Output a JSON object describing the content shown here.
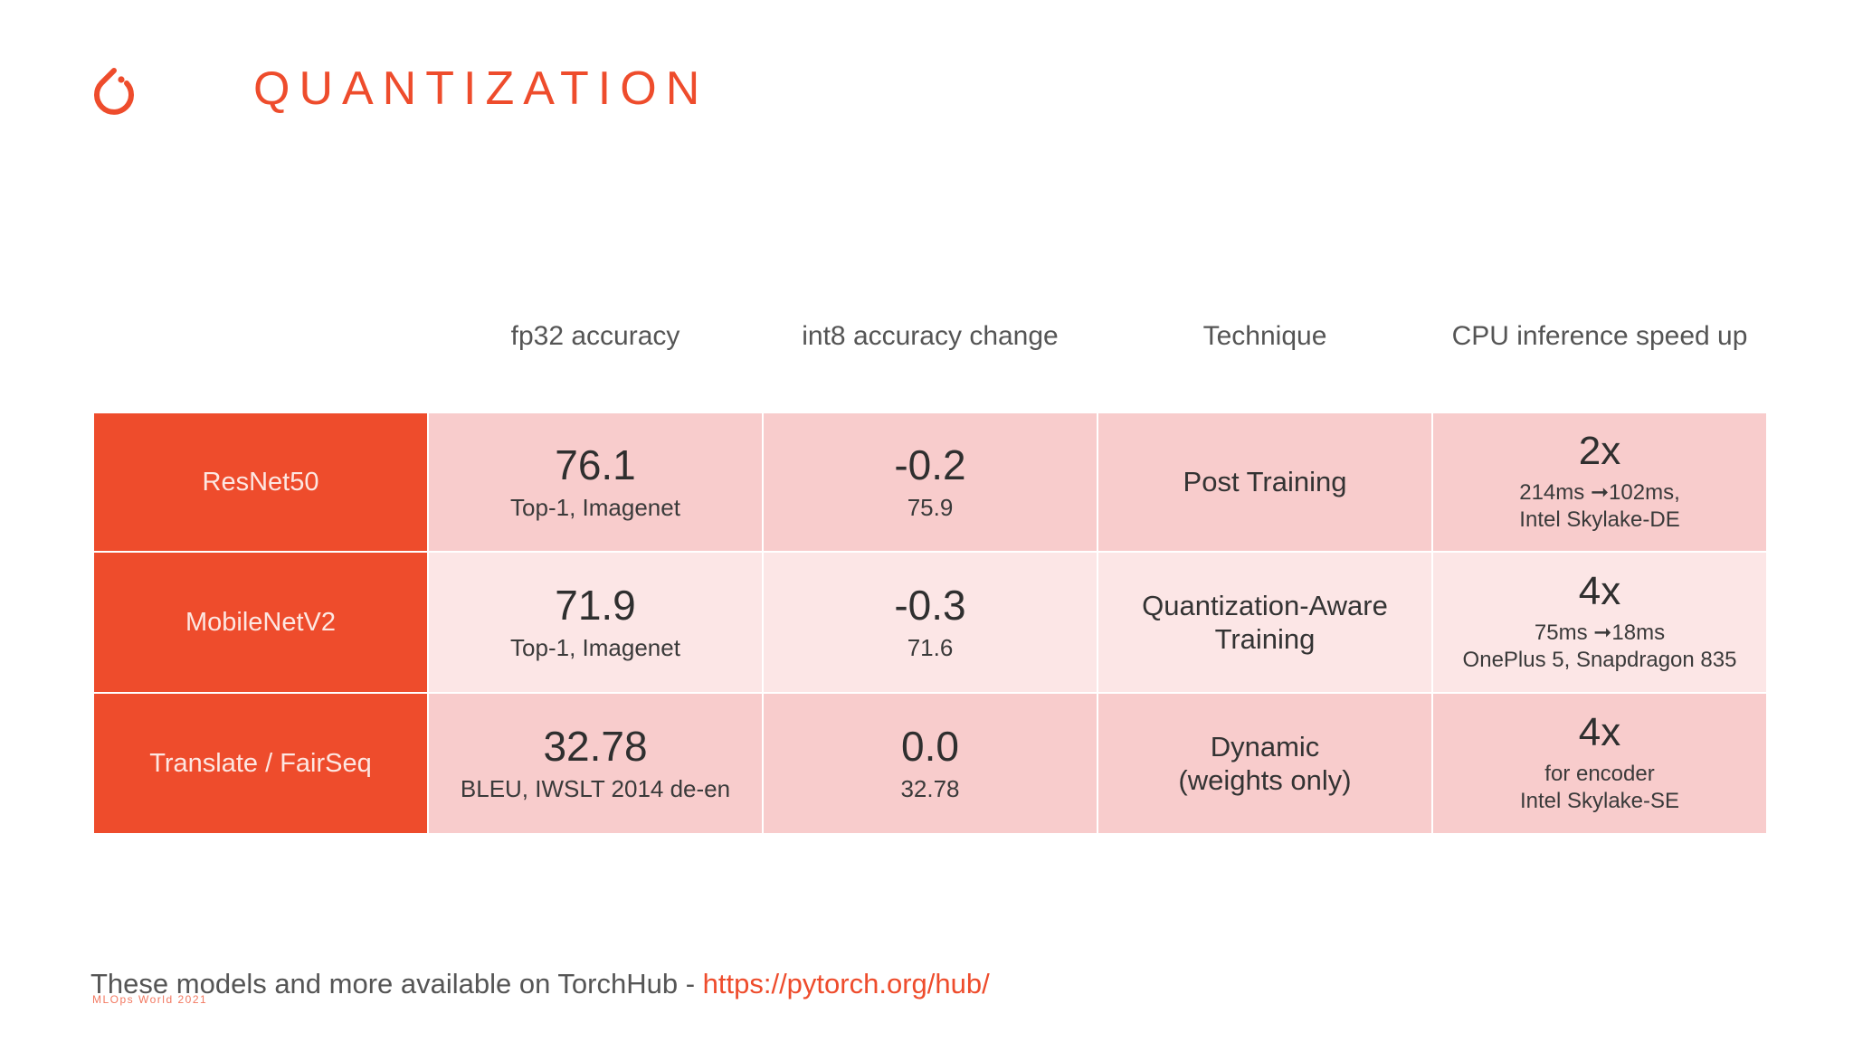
{
  "slide": {
    "title": "QUANTIZATION",
    "logo_icon": "pytorch-flame-icon",
    "accent_color": "#ee4c2c"
  },
  "table": {
    "headers": [
      "fp32 accuracy",
      "int8 accuracy change",
      "Technique",
      "CPU inference speed up"
    ],
    "rows": [
      {
        "model": "ResNet50",
        "fp32_value": "76.1",
        "fp32_metric": "Top-1, Imagenet",
        "int8_change": "-0.2",
        "int8_value": "75.9",
        "technique": [
          "Post Training"
        ],
        "speedup": "2x",
        "speed_detail": [
          "214ms ➞102ms,",
          "Intel Skylake-DE"
        ]
      },
      {
        "model": "MobileNetV2",
        "fp32_value": "71.9",
        "fp32_metric": "Top-1, Imagenet",
        "int8_change": "-0.3",
        "int8_value": "71.6",
        "technique": [
          "Quantization-Aware",
          "Training"
        ],
        "speedup": "4x",
        "speed_detail": [
          "75ms ➞18ms",
          "OnePlus 5, Snapdragon 835"
        ]
      },
      {
        "model": "Translate / FairSeq",
        "fp32_value": "32.78",
        "fp32_metric": "BLEU, IWSLT 2014 de-en",
        "int8_change": "0.0",
        "int8_value": "32.78",
        "technique": [
          "Dynamic",
          "(weights only)"
        ],
        "speedup": "4x",
        "speed_detail": [
          "for encoder",
          "Intel Skylake-SE"
        ]
      }
    ]
  },
  "footer": {
    "text": "These models and more available on TorchHub - ",
    "link": "https://pytorch.org/hub/",
    "watermark": "MLOps World 2021"
  }
}
